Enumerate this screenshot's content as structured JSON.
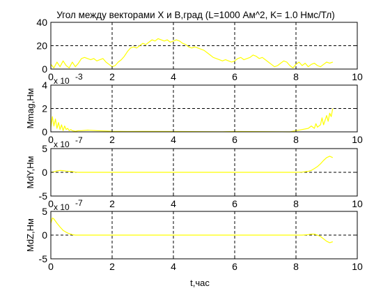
{
  "figure": {
    "title": "Угол между векторами X и B,град  (L=1000 Ам^2,  K= 1.0 Нмс/Тл)",
    "xlabel": "t,час"
  },
  "chart_data": [
    {
      "type": "line",
      "ylabel": "",
      "multiplier": "",
      "xlim": [
        0,
        10
      ],
      "ylim": [
        0,
        40
      ],
      "xticks": [
        0,
        2,
        4,
        6,
        8,
        10
      ],
      "yticks": [
        0,
        20,
        40
      ],
      "xtick_labels": [
        "0",
        "2",
        "4",
        "6",
        "8",
        "10"
      ],
      "ytick_labels": [
        "0",
        "20",
        "40"
      ],
      "grid": true,
      "color": "#ffff00",
      "x": [
        0.0,
        0.1,
        0.2,
        0.3,
        0.4,
        0.5,
        0.6,
        0.7,
        0.8,
        0.9,
        1.0,
        1.1,
        1.2,
        1.3,
        1.4,
        1.5,
        1.6,
        1.7,
        1.8,
        1.9,
        2.0,
        2.1,
        2.2,
        2.3,
        2.4,
        2.5,
        2.6,
        2.7,
        2.8,
        2.9,
        3.0,
        3.1,
        3.2,
        3.3,
        3.4,
        3.5,
        3.6,
        3.7,
        3.8,
        3.9,
        4.0,
        4.1,
        4.2,
        4.3,
        4.4,
        4.5,
        4.6,
        4.7,
        4.8,
        4.9,
        5.0,
        5.1,
        5.2,
        5.3,
        5.4,
        5.5,
        5.6,
        5.7,
        5.8,
        5.9,
        6.0,
        6.1,
        6.2,
        6.3,
        6.4,
        6.5,
        6.6,
        6.7,
        6.8,
        6.9,
        7.0,
        7.1,
        7.2,
        7.3,
        7.4,
        7.5,
        7.6,
        7.7,
        7.8,
        7.9,
        8.0,
        8.1,
        8.2,
        8.3,
        8.4,
        8.5,
        8.6,
        8.7,
        8.8,
        8.9,
        9.0,
        9.1,
        9.2
      ],
      "y": [
        4,
        1,
        6,
        2,
        7,
        3,
        1,
        6,
        2,
        5,
        9,
        10,
        9,
        8,
        9,
        7,
        8,
        9,
        6,
        4,
        2,
        3,
        6,
        8,
        11,
        15,
        18,
        19,
        18,
        20,
        22,
        21,
        23,
        25,
        24,
        26,
        25,
        24,
        25,
        23,
        24,
        25,
        24,
        22,
        21,
        19,
        18,
        19,
        18,
        17,
        16,
        14,
        12,
        10,
        9,
        8,
        7,
        8,
        7,
        6,
        7,
        9,
        10,
        8,
        9,
        10,
        12,
        11,
        9,
        10,
        8,
        6,
        4,
        2,
        3,
        5,
        7,
        6,
        3,
        1,
        4,
        6,
        3,
        5,
        2,
        4,
        5,
        3,
        2,
        4,
        6,
        5,
        6
      ]
    },
    {
      "type": "line",
      "ylabel": "Mmag,Нм",
      "multiplier": "x 10",
      "multiplier_exp": "-3",
      "xlim": [
        0,
        10
      ],
      "ylim": [
        0,
        4
      ],
      "xticks": [
        0,
        2,
        4,
        6,
        8,
        10
      ],
      "yticks": [
        0,
        2,
        4
      ],
      "xtick_labels": [
        "0",
        "2",
        "4",
        "6",
        "8",
        "10"
      ],
      "ytick_labels": [
        "0",
        "2",
        "4"
      ],
      "grid": true,
      "color": "#ffff00",
      "x": [
        0.0,
        0.05,
        0.1,
        0.15,
        0.2,
        0.25,
        0.3,
        0.35,
        0.4,
        0.45,
        0.5,
        0.55,
        0.6,
        0.65,
        0.7,
        0.8,
        0.9,
        1.0,
        1.2,
        1.5,
        2.0,
        2.5,
        3.0,
        4.0,
        5.0,
        5.6,
        5.7,
        6.0,
        7.0,
        7.8,
        7.9,
        8.0,
        8.2,
        8.4,
        8.5,
        8.6,
        8.65,
        8.7,
        8.8,
        8.85,
        8.9,
        8.95,
        9.0,
        9.05,
        9.1,
        9.15,
        9.2
      ],
      "y": [
        0.4,
        1.3,
        0.5,
        1.1,
        0.3,
        0.8,
        0.2,
        0.6,
        0.1,
        0.5,
        0.2,
        0.3,
        0.1,
        0.2,
        0.1,
        0.05,
        0.1,
        0.1,
        0.15,
        0.1,
        0.05,
        0.03,
        0.04,
        0.03,
        0.02,
        0.01,
        0.02,
        0.03,
        0.02,
        0.0,
        0.05,
        0.1,
        0.2,
        0.3,
        0.5,
        0.3,
        0.7,
        0.4,
        0.6,
        1.2,
        0.6,
        1.0,
        1.4,
        0.9,
        1.6,
        1.3,
        2.0
      ]
    },
    {
      "type": "line",
      "ylabel": "MdY,Нм",
      "multiplier": "x 10",
      "multiplier_exp": "-7",
      "xlim": [
        0,
        10
      ],
      "ylim": [
        -5,
        5
      ],
      "xticks": [
        0,
        2,
        4,
        6,
        8,
        10
      ],
      "yticks": [
        -5,
        0,
        5
      ],
      "xtick_labels": [
        "0",
        "2",
        "4",
        "6",
        "8",
        "10"
      ],
      "ytick_labels": [
        "-5",
        "0",
        "5"
      ],
      "grid": true,
      "color": "#ffff00",
      "x": [
        0.0,
        0.1,
        0.2,
        0.3,
        0.4,
        0.5,
        0.6,
        0.7,
        0.8,
        0.9,
        1.0,
        2.0,
        3.0,
        4.0,
        5.0,
        6.0,
        7.0,
        8.0,
        8.2,
        8.4,
        8.5,
        8.6,
        8.7,
        8.8,
        8.9,
        9.0,
        9.1,
        9.2
      ],
      "y": [
        0.0,
        0.1,
        0.3,
        0.4,
        0.35,
        0.25,
        0.2,
        0.15,
        0.05,
        0.0,
        0.0,
        0.0,
        0.0,
        0.0,
        0.0,
        0.0,
        0.0,
        0.0,
        0.05,
        0.2,
        0.4,
        0.8,
        1.2,
        1.8,
        2.5,
        3.1,
        3.4,
        3.1
      ]
    },
    {
      "type": "line",
      "ylabel": "MdZ,Нм",
      "multiplier": "x 10",
      "multiplier_exp": "-7",
      "xlim": [
        0,
        10
      ],
      "ylim": [
        -5,
        5
      ],
      "xticks": [
        0,
        2,
        4,
        6,
        8,
        10
      ],
      "yticks": [
        -5,
        0,
        5
      ],
      "xtick_labels": [
        "0",
        "2",
        "4",
        "6",
        "8",
        "10"
      ],
      "ytick_labels": [
        "-5",
        "0",
        "5"
      ],
      "grid": true,
      "color": "#ffff00",
      "x": [
        0.0,
        0.05,
        0.1,
        0.2,
        0.3,
        0.4,
        0.5,
        0.6,
        0.7,
        0.8,
        0.9,
        1.0,
        2.0,
        4.0,
        6.0,
        8.0,
        8.2,
        8.4,
        8.5,
        8.6,
        8.7,
        8.8,
        8.9,
        9.0,
        9.1,
        9.2
      ],
      "y": [
        2.5,
        3.6,
        3.4,
        2.5,
        1.7,
        1.0,
        0.6,
        0.3,
        0.1,
        0.0,
        0.0,
        0.0,
        0.0,
        0.0,
        0.0,
        0.0,
        0.0,
        0.1,
        0.2,
        0.2,
        0.0,
        -0.3,
        -0.8,
        -1.3,
        -1.6,
        -1.4
      ]
    }
  ]
}
